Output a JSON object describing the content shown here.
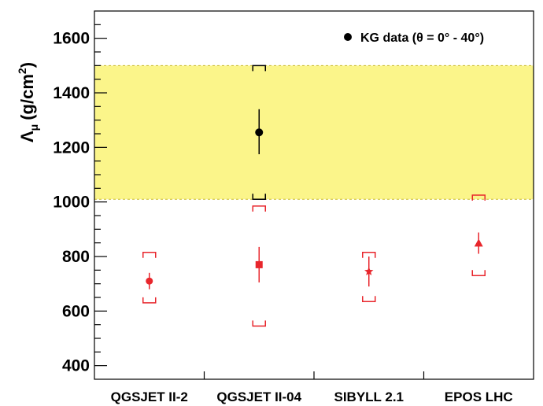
{
  "chart_data": {
    "type": "scatter",
    "title": "",
    "xlabel": "",
    "ylabel": "Λ_μ (g/cm²)",
    "ylabel_parts": {
      "symbol": "Λ",
      "sub": "μ",
      "unit": "(g/cm",
      "sup": "2",
      "close": ")"
    },
    "ylim": [
      350,
      1700
    ],
    "yticks": [
      400,
      600,
      800,
      1000,
      1200,
      1400,
      1600
    ],
    "categories": [
      "QGSJET II-2",
      "QGSJET II-04",
      "SIBYLL 2.1",
      "EPOS LHC"
    ],
    "band": {
      "low": 1010,
      "high": 1500,
      "color": "#fbf58a"
    },
    "legend": {
      "label": "KG data (θ = 0° - 40°)",
      "position": "top-right"
    },
    "data": {
      "category": "QGSJET II-04",
      "value": 1255,
      "stat_low": 1175,
      "stat_high": 1340,
      "sys_low": 1010,
      "sys_high": 1500,
      "color": "#000000",
      "marker": "circle"
    },
    "series": [
      {
        "category": "QGSJET II-2",
        "value": 710,
        "stat_low": 680,
        "stat_high": 740,
        "sys_low": 630,
        "sys_high": 815,
        "marker": "circle"
      },
      {
        "category": "QGSJET II-04",
        "value": 770,
        "stat_low": 705,
        "stat_high": 835,
        "sys_low": 545,
        "sys_high": 985,
        "marker": "square"
      },
      {
        "category": "SIBYLL 2.1",
        "value": 745,
        "stat_low": 690,
        "stat_high": 800,
        "sys_low": 635,
        "sys_high": 815,
        "marker": "star"
      },
      {
        "category": "EPOS LHC",
        "value": 848,
        "stat_low": 810,
        "stat_high": 888,
        "sys_low": 730,
        "sys_high": 1025,
        "marker": "triangle"
      }
    ],
    "model_color": "#e8262c",
    "grid": false
  }
}
